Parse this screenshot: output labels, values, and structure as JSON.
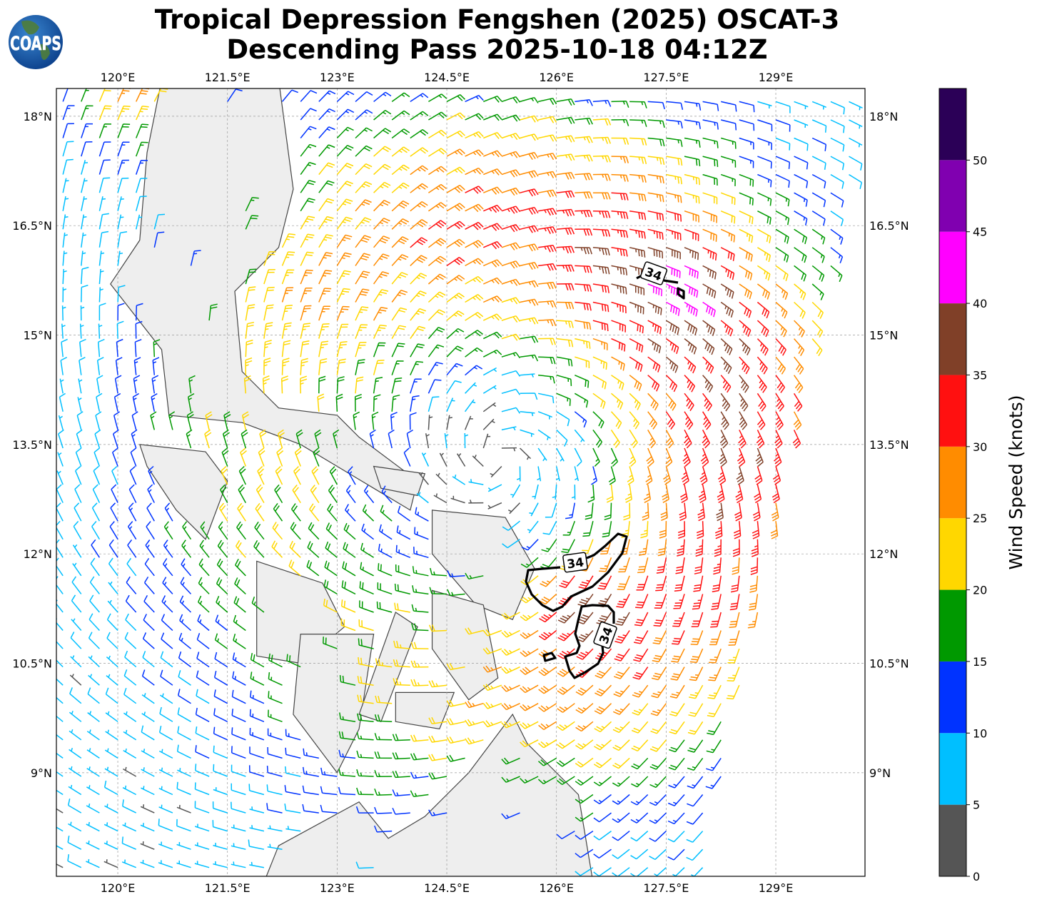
{
  "title": {
    "line1": "Tropical Depression Fengshen (2025) OSCAT-3",
    "line2": "Descending Pass 2025-10-18 04:12Z"
  },
  "logo": {
    "text": "COAPS",
    "icon": "globe-logo"
  },
  "map": {
    "lon_range": [
      119.16,
      130.22
    ],
    "lat_range": [
      7.58,
      18.38
    ],
    "lon_ticks": [
      {
        "v": 120,
        "label": "120°E"
      },
      {
        "v": 121.5,
        "label": "121.5°E"
      },
      {
        "v": 123,
        "label": "123°E"
      },
      {
        "v": 124.5,
        "label": "124.5°E"
      },
      {
        "v": 126,
        "label": "126°E"
      },
      {
        "v": 127.5,
        "label": "127.5°E"
      },
      {
        "v": 129,
        "label": "129°E"
      }
    ],
    "lat_ticks": [
      {
        "v": 18,
        "label": "18°N"
      },
      {
        "v": 16.5,
        "label": "16.5°N"
      },
      {
        "v": 15,
        "label": "15°N"
      },
      {
        "v": 13.5,
        "label": "13.5°N"
      },
      {
        "v": 12,
        "label": "12°N"
      },
      {
        "v": 10.5,
        "label": "10.5°N"
      },
      {
        "v": 9,
        "label": "9°N"
      }
    ],
    "grid": true,
    "contour_level_label": "34"
  },
  "colorbar": {
    "label": "Wind Speed (knots)",
    "range": [
      0,
      55
    ],
    "ticks": [
      "0",
      "5",
      "10",
      "15",
      "20",
      "25",
      "30",
      "35",
      "40",
      "45",
      "50"
    ],
    "bins": [
      {
        "min": 0,
        "max": 5,
        "color": "#555555"
      },
      {
        "min": 5,
        "max": 10,
        "color": "#00bfff"
      },
      {
        "min": 10,
        "max": 15,
        "color": "#0033ff"
      },
      {
        "min": 15,
        "max": 20,
        "color": "#009900"
      },
      {
        "min": 20,
        "max": 25,
        "color": "#ffd700"
      },
      {
        "min": 25,
        "max": 30,
        "color": "#ff8c00"
      },
      {
        "min": 30,
        "max": 35,
        "color": "#ff1010"
      },
      {
        "min": 35,
        "max": 40,
        "color": "#804028"
      },
      {
        "min": 40,
        "max": 45,
        "color": "#ff00ff"
      },
      {
        "min": 45,
        "max": 50,
        "color": "#8000b0"
      },
      {
        "min": 50,
        "max": 55,
        "color": "#2b0057"
      }
    ]
  }
}
